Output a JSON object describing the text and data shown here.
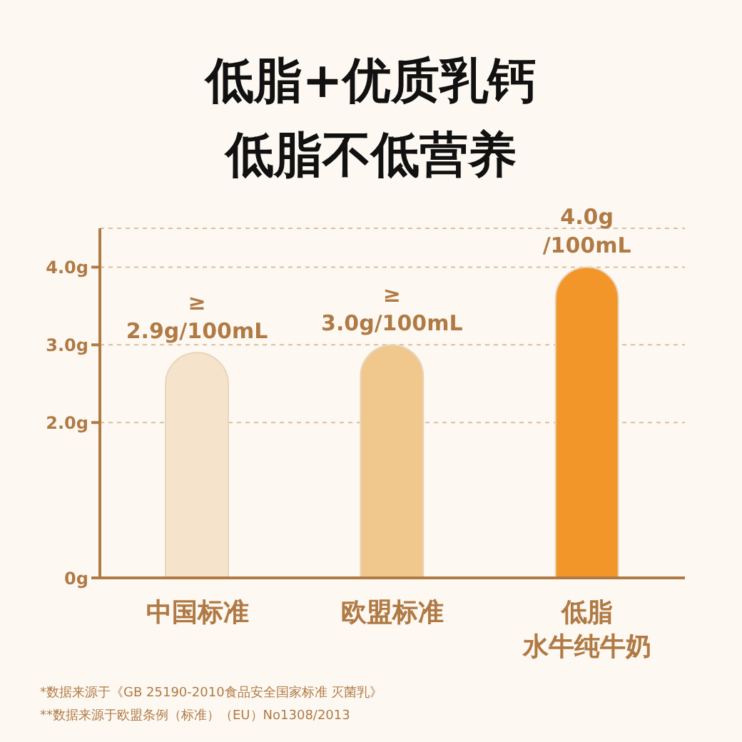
{
  "chart_data": {
    "type": "bar",
    "title": "低脂+优质乳钙",
    "subtitle": "低脂不低营养",
    "categories": [
      "中国标准",
      "欧盟标准",
      "低脂水牛纯牛奶"
    ],
    "values": [
      2.9,
      3.0,
      4.0
    ],
    "colors": [
      "#f5e4cb",
      "#f0c88e",
      "#f2962a"
    ],
    "value_labels": [
      "≥ 2.9g/100mL",
      "≥ 3.0g/100mL",
      "4.0g /100mL"
    ],
    "ylim": [
      0,
      4.5
    ],
    "yticks": [
      {
        "value": 0,
        "label": "0g"
      },
      {
        "value": 2,
        "label": "2.0g"
      },
      {
        "value": 3,
        "label": "3.0g"
      },
      {
        "value": 4,
        "label": "4.0g"
      }
    ],
    "grid": "y",
    "annotations": [
      "*数据来源于《GB 25190-2010食品安全国家标准 灭菌乳》",
      "**数据来源于欧盟条例（标准）（EU）No1308/2013"
    ]
  }
}
